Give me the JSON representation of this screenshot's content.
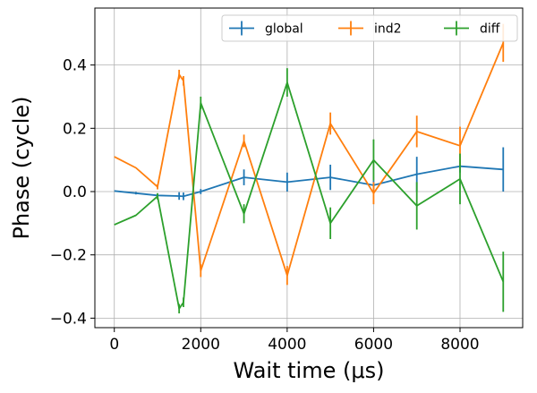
{
  "chart_data": {
    "type": "line",
    "xlabel": "Wait time (μs)",
    "ylabel": "Phase (cycle)",
    "xlim": [
      -450,
      9450
    ],
    "ylim": [
      -0.43,
      0.58
    ],
    "xticks": [
      0,
      2000,
      4000,
      6000,
      8000
    ],
    "xtick_labels": [
      "0",
      "2000",
      "4000",
      "6000",
      "8000"
    ],
    "yticks": [
      -0.4,
      -0.2,
      0.0,
      0.2,
      0.4
    ],
    "ytick_labels": [
      "−0.4",
      "−0.2",
      "0.0",
      "0.2",
      "0.4"
    ],
    "grid": true,
    "legend_position": "top-right",
    "series": [
      {
        "name": "global",
        "color": "#1f77b4",
        "points": [
          {
            "x": 0,
            "y": 0.002,
            "err": 0.0
          },
          {
            "x": 500,
            "y": -0.005,
            "err": 0.004
          },
          {
            "x": 1000,
            "y": -0.012,
            "err": 0.005
          },
          {
            "x": 1500,
            "y": -0.014,
            "err": 0.012
          },
          {
            "x": 1600,
            "y": -0.015,
            "err": 0.012
          },
          {
            "x": 2000,
            "y": 0.0,
            "err": 0.008
          },
          {
            "x": 3000,
            "y": 0.045,
            "err": 0.025
          },
          {
            "x": 4000,
            "y": 0.03,
            "err": 0.03
          },
          {
            "x": 5000,
            "y": 0.045,
            "err": 0.04
          },
          {
            "x": 6000,
            "y": 0.02,
            "err": 0.015
          },
          {
            "x": 7000,
            "y": 0.055,
            "err": 0.055
          },
          {
            "x": 8000,
            "y": 0.08,
            "err": 0.02
          },
          {
            "x": 9000,
            "y": 0.07,
            "err": 0.07
          }
        ]
      },
      {
        "name": "ind2",
        "color": "#ff7f0e",
        "points": [
          {
            "x": 0,
            "y": 0.11,
            "err": 0.0
          },
          {
            "x": 500,
            "y": 0.075,
            "err": 0.0
          },
          {
            "x": 1000,
            "y": 0.015,
            "err": 0.008
          },
          {
            "x": 1500,
            "y": 0.37,
            "err": 0.015
          },
          {
            "x": 1600,
            "y": 0.35,
            "err": 0.015
          },
          {
            "x": 2000,
            "y": -0.25,
            "err": 0.02
          },
          {
            "x": 3000,
            "y": 0.16,
            "err": 0.02
          },
          {
            "x": 4000,
            "y": -0.265,
            "err": 0.03
          },
          {
            "x": 5000,
            "y": 0.215,
            "err": 0.035
          },
          {
            "x": 6000,
            "y": -0.005,
            "err": 0.035
          },
          {
            "x": 7000,
            "y": 0.19,
            "err": 0.05
          },
          {
            "x": 8000,
            "y": 0.145,
            "err": 0.06
          },
          {
            "x": 9000,
            "y": 0.47,
            "err": 0.06
          }
        ]
      },
      {
        "name": "diff",
        "color": "#2ca02c",
        "points": [
          {
            "x": 0,
            "y": -0.105,
            "err": 0.0
          },
          {
            "x": 500,
            "y": -0.075,
            "err": 0.0
          },
          {
            "x": 1000,
            "y": -0.015,
            "err": 0.01
          },
          {
            "x": 1500,
            "y": -0.37,
            "err": 0.015
          },
          {
            "x": 1600,
            "y": -0.35,
            "err": 0.015
          },
          {
            "x": 2000,
            "y": 0.28,
            "err": 0.02
          },
          {
            "x": 3000,
            "y": -0.07,
            "err": 0.03
          },
          {
            "x": 4000,
            "y": 0.345,
            "err": 0.045
          },
          {
            "x": 5000,
            "y": -0.1,
            "err": 0.05
          },
          {
            "x": 6000,
            "y": 0.1,
            "err": 0.065
          },
          {
            "x": 7000,
            "y": -0.045,
            "err": 0.075
          },
          {
            "x": 8000,
            "y": 0.04,
            "err": 0.08
          },
          {
            "x": 9000,
            "y": -0.285,
            "err": 0.095
          }
        ]
      }
    ]
  }
}
